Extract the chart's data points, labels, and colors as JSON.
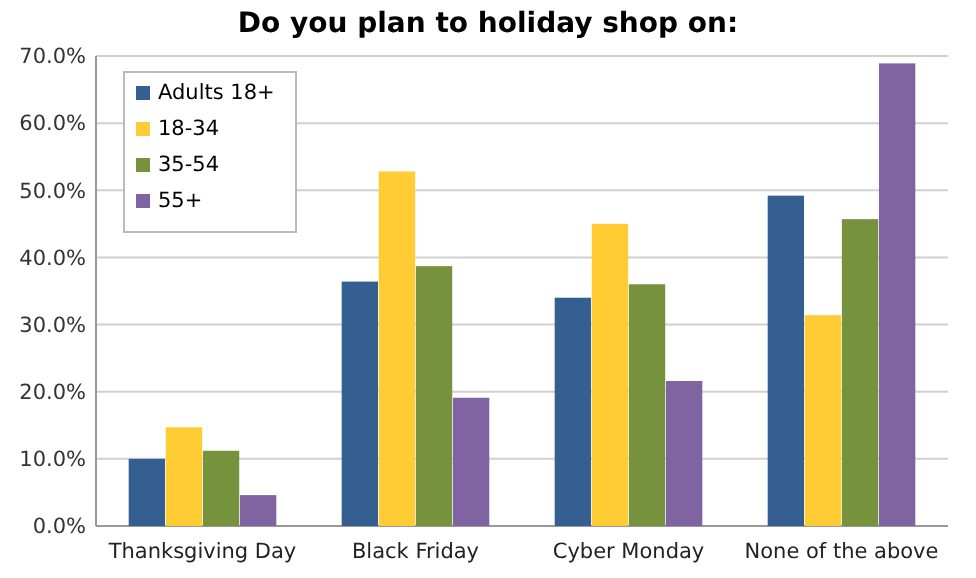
{
  "chart_data": {
    "type": "bar",
    "title": "Do you plan to holiday shop on:",
    "categories": [
      "Thanksgiving Day",
      "Black Friday",
      "Cyber Monday",
      "None of the above"
    ],
    "series": [
      {
        "name": "Adults 18+",
        "color": "#365f91",
        "values": [
          10,
          36.4,
          34,
          49.2
        ]
      },
      {
        "name": "18-34",
        "color": "#ffcc33",
        "values": [
          14.7,
          52.8,
          45,
          31.4
        ]
      },
      {
        "name": "35-54",
        "color": "#76923c",
        "values": [
          11.2,
          38.7,
          36,
          45.7
        ]
      },
      {
        "name": "55+",
        "color": "#8064a2",
        "values": [
          4.6,
          19.1,
          21.6,
          68.9
        ]
      }
    ],
    "ylim": [
      0,
      70
    ],
    "yticks": [
      {
        "value": 0,
        "label": "0.0%"
      },
      {
        "value": 10,
        "label": "10.0%"
      },
      {
        "value": 20,
        "label": "20.0%"
      },
      {
        "value": 30,
        "label": "30.0%"
      },
      {
        "value": 40,
        "label": "40.0%"
      },
      {
        "value": 50,
        "label": "50.0%"
      },
      {
        "value": 60,
        "label": "60.0%"
      },
      {
        "value": 70,
        "label": "70.0%"
      }
    ],
    "grid": "y",
    "legend": "top left"
  }
}
